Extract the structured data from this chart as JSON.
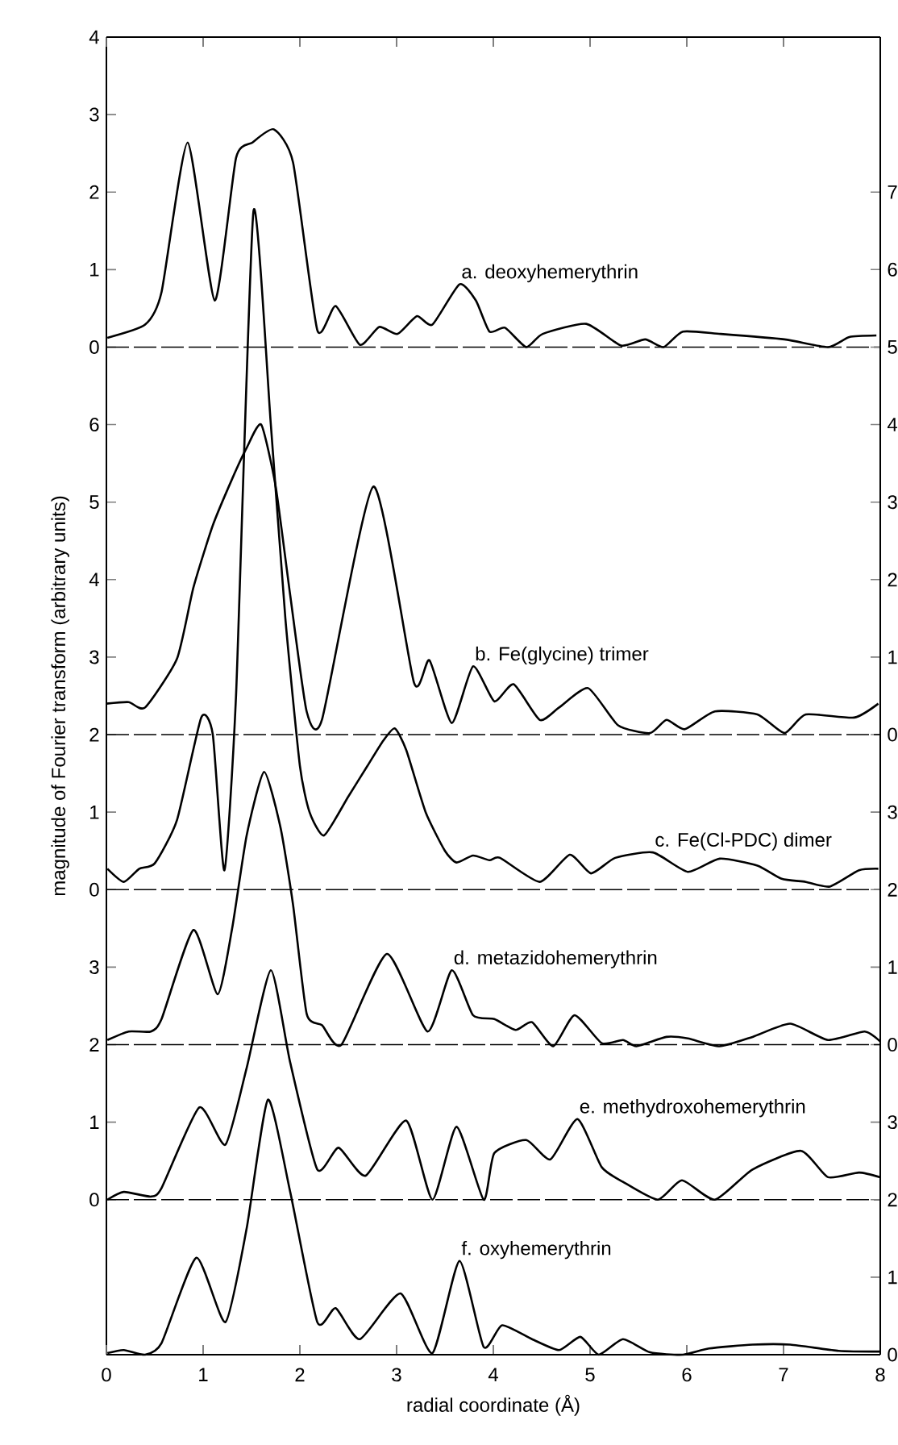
{
  "chart_data": [
    {
      "type": "line",
      "ylabel": "magnitude of Fourier transform  (arbitrary units)",
      "xlim": [
        0,
        8
      ],
      "xticks": [
        0,
        1,
        2,
        3,
        4,
        5,
        6,
        7,
        8
      ],
      "tick_labels": "y",
      "ylim": [
        -13,
        4
      ],
      "yticks": [
        0,
        1,
        2,
        3,
        4
      ],
      "y2lim": [
        -8,
        9
      ],
      "y2ticks": [
        5,
        6,
        7
      ],
      "series": [
        {
          "color": "#000000",
          "x": [
            0.01,
            0.4,
            0.57,
            0.84,
            1.12,
            1.34,
            1.51,
            1.73,
            1.93,
            2.18,
            2.37,
            2.62,
            2.82,
            3.01,
            3.21,
            3.37,
            3.65,
            3.82,
            3.96,
            4.12,
            4.34,
            4.51,
            4.96,
            5.32,
            5.57,
            5.76,
            5.96,
            6.35,
            7.01,
            7.46,
            7.68,
            7.96
          ],
          "values": [
            0.12,
            0.29,
            0.71,
            2.64,
            0.6,
            2.44,
            2.64,
            2.81,
            2.38,
            0.22,
            0.53,
            0.03,
            0.26,
            0.17,
            0.4,
            0.29,
            0.81,
            0.6,
            0.2,
            0.25,
            0.0,
            0.17,
            0.3,
            0.02,
            0.1,
            0.0,
            0.2,
            0.17,
            0.1,
            0.0,
            0.13,
            0.15
          ]
        }
      ],
      "ref_lines": [
        {
          "axis": "y",
          "value": 0,
          "line_style": "dashed"
        }
      ],
      "annotations": [
        "a. deoxyhemerythrin"
      ]
    },
    {
      "type": "line",
      "xlim": [
        0,
        8
      ],
      "xticks": [
        0,
        1,
        2,
        3,
        4,
        5,
        6,
        7,
        8
      ],
      "tick_labels": "y",
      "ylim": [
        -6,
        11
      ],
      "yticks": [
        2,
        3,
        4,
        5,
        6
      ],
      "y2lim": [
        -8,
        9
      ],
      "y2ticks": [
        0,
        1,
        2,
        3,
        4
      ],
      "series": [
        {
          "color": "#000000",
          "x": [
            0.0,
            0.23,
            0.4,
            0.73,
            0.9,
            1.1,
            1.3,
            1.45,
            1.6,
            1.75,
            1.9,
            2.07,
            2.23,
            2.76,
            3.18,
            3.34,
            3.57,
            3.79,
            4.01,
            4.21,
            4.48,
            4.68,
            4.98,
            5.29,
            5.62,
            5.79,
            5.98,
            6.29,
            6.73,
            7.01,
            7.23,
            7.73,
            7.98
          ],
          "values": [
            2.4,
            2.42,
            2.35,
            2.98,
            3.9,
            4.7,
            5.3,
            5.7,
            6.0,
            5.2,
            3.8,
            2.3,
            2.2,
            5.2,
            2.67,
            2.96,
            2.15,
            2.88,
            2.43,
            2.65,
            2.19,
            2.35,
            2.6,
            2.12,
            2.02,
            2.19,
            2.07,
            2.3,
            2.26,
            2.02,
            2.26,
            2.22,
            2.4
          ]
        }
      ],
      "ref_lines": [
        {
          "axis": "y2",
          "value": 0,
          "line_style": "dashed"
        }
      ],
      "annotations": [
        "b. Fe(glycine) trimer"
      ]
    },
    {
      "type": "line",
      "xlim": [
        0,
        8
      ],
      "xticks": [
        0,
        1,
        2,
        3,
        4,
        5,
        6,
        7,
        8
      ],
      "tick_labels": "y",
      "ylim": [
        -6,
        11
      ],
      "yticks": [
        0,
        1
      ],
      "y2lim": [
        -4,
        13
      ],
      "y2ticks": [
        2,
        3
      ],
      "series": [
        {
          "color": "#000000",
          "x": [
            0.01,
            0.18,
            0.34,
            0.5,
            0.73,
            0.98,
            1.1,
            1.22,
            1.34,
            1.52,
            1.7,
            1.85,
            2.0,
            2.1,
            2.25,
            2.5,
            2.7,
            2.85,
            2.98,
            3.1,
            3.3,
            3.5,
            3.62,
            3.79,
            3.96,
            4.07,
            4.48,
            4.79,
            5.01,
            5.26,
            5.65,
            6.01,
            6.34,
            6.73,
            6.98,
            7.23,
            7.48,
            7.78,
            7.98
          ],
          "values": [
            0.27,
            0.1,
            0.27,
            0.34,
            0.9,
            2.22,
            2.0,
            0.25,
            2.5,
            8.75,
            6.0,
            3.5,
            1.6,
            1.0,
            0.7,
            1.2,
            1.6,
            1.9,
            2.08,
            1.8,
            1.0,
            0.5,
            0.35,
            0.44,
            0.38,
            0.41,
            0.1,
            0.45,
            0.21,
            0.41,
            0.48,
            0.23,
            0.4,
            0.31,
            0.14,
            0.1,
            0.04,
            0.25,
            0.27
          ]
        }
      ],
      "ref_lines": [
        {
          "axis": "y",
          "value": 0,
          "line_style": "dashed"
        }
      ],
      "annotations": [
        "c. Fe(Cl-PDC) dimer"
      ]
    },
    {
      "type": "line",
      "xlim": [
        0,
        8
      ],
      "xticks": [
        0,
        1,
        2,
        3,
        4,
        5,
        6,
        7,
        8
      ],
      "tick_labels": "y",
      "ylim": [
        -2,
        15
      ],
      "yticks": [
        2,
        3
      ],
      "y2lim": [
        -4,
        13
      ],
      "y2ticks": [
        0,
        1
      ],
      "series": [
        {
          "color": "#000000",
          "x": [
            0.01,
            0.23,
            0.46,
            0.57,
            0.9,
            1.15,
            1.3,
            1.45,
            1.63,
            1.8,
            1.93,
            2.07,
            2.23,
            2.43,
            2.9,
            3.32,
            3.57,
            3.79,
            4.01,
            4.23,
            4.4,
            4.62,
            4.84,
            5.12,
            5.34,
            5.48,
            5.79,
            6.01,
            6.34,
            6.68,
            7.07,
            7.46,
            7.84,
            8.0
          ],
          "values": [
            2.06,
            2.17,
            2.17,
            2.33,
            3.48,
            2.65,
            3.5,
            4.7,
            5.52,
            4.8,
            3.8,
            2.4,
            2.25,
            2.0,
            3.17,
            2.17,
            2.96,
            2.38,
            2.33,
            2.19,
            2.29,
            1.98,
            2.38,
            2.02,
            2.06,
            1.98,
            2.1,
            2.08,
            1.98,
            2.1,
            2.27,
            2.06,
            2.17,
            2.04
          ]
        }
      ],
      "ref_lines": [
        {
          "axis": "y2",
          "value": 0,
          "line_style": "dashed"
        }
      ],
      "annotations": [
        "d. metazidohemerythrin"
      ]
    },
    {
      "type": "line",
      "xlim": [
        0,
        8
      ],
      "xticks": [
        0,
        1,
        2,
        3,
        4,
        5,
        6,
        7,
        8
      ],
      "tick_labels": "y",
      "ylim": [
        -2,
        15
      ],
      "yticks": [
        0,
        1
      ],
      "y2lim": [
        0,
        17
      ],
      "y2ticks": [
        2,
        3
      ],
      "series": [
        {
          "color": "#000000",
          "x": [
            0.01,
            0.18,
            0.46,
            0.57,
            0.96,
            1.23,
            1.45,
            1.7,
            1.9,
            2.18,
            2.4,
            2.68,
            3.1,
            3.37,
            3.62,
            3.9,
            4.01,
            4.34,
            4.59,
            4.87,
            5.12,
            5.34,
            5.7,
            5.95,
            6.29,
            6.68,
            7.18,
            7.46,
            7.78,
            8.0
          ],
          "values": [
            0.0,
            0.1,
            0.04,
            0.15,
            1.19,
            0.71,
            1.7,
            2.96,
            1.77,
            0.39,
            0.67,
            0.31,
            1.02,
            0.0,
            0.94,
            0.0,
            0.6,
            0.77,
            0.52,
            1.04,
            0.42,
            0.23,
            0.0,
            0.25,
            0.0,
            0.39,
            0.63,
            0.29,
            0.35,
            0.29
          ]
        }
      ],
      "ref_lines": [
        {
          "axis": "y",
          "value": 0,
          "line_style": "dashed"
        }
      ],
      "annotations": [
        "e. methydroxohemerythrin"
      ]
    },
    {
      "type": "line",
      "xlabel": "radial coordinate   (Å)",
      "xlim": [
        0,
        8
      ],
      "xticks": [
        0,
        1,
        2,
        3,
        4,
        5,
        6,
        7,
        8
      ],
      "y2lim": [
        0,
        17
      ],
      "y2ticks": [
        0,
        1
      ],
      "series": [
        {
          "color": "#000000",
          "axis": "y2",
          "x": [
            0.01,
            0.18,
            0.4,
            0.57,
            0.93,
            1.23,
            1.45,
            1.67,
            1.9,
            2.18,
            2.37,
            2.62,
            3.04,
            3.37,
            3.65,
            3.9,
            4.09,
            4.4,
            4.68,
            4.9,
            5.09,
            5.34,
            5.62,
            5.96,
            6.23,
            6.68,
            7.07,
            7.57,
            8.0
          ],
          "values": [
            0.02,
            0.06,
            0.0,
            0.15,
            1.25,
            0.42,
            1.63,
            3.29,
            2.1,
            0.42,
            0.6,
            0.2,
            0.79,
            0.02,
            1.21,
            0.1,
            0.38,
            0.2,
            0.06,
            0.23,
            0.0,
            0.2,
            0.03,
            0.0,
            0.08,
            0.13,
            0.13,
            0.05,
            0.04
          ]
        }
      ],
      "annotations": [
        "f. oxyhemerythrin"
      ]
    }
  ]
}
